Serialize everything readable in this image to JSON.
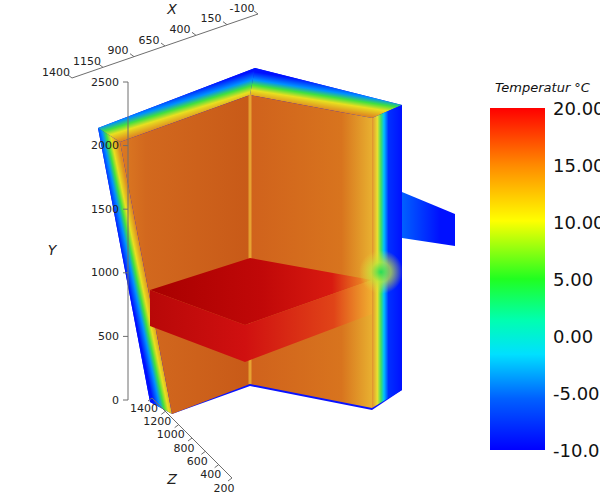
{
  "chart_data": {
    "type": "3d",
    "xlabel": "X",
    "ylabel": "Y",
    "zlabel": "Z",
    "xlim": [
      -100,
      1400
    ],
    "xticks": [
      1400,
      1150,
      900,
      650,
      400,
      150,
      -100
    ],
    "ylim": [
      0,
      2500
    ],
    "yticks": [
      0,
      500,
      1000,
      1500,
      2000,
      2500
    ],
    "zlim": [
      200,
      1400
    ],
    "zticks": [
      1400,
      1200,
      1000,
      800,
      600,
      400,
      200
    ],
    "colorbar": {
      "title": "Temperatur °C",
      "range": [
        -10,
        20
      ],
      "ticks": [
        {
          "value": 20,
          "label": "20.00"
        },
        {
          "value": 15,
          "label": "15.00"
        },
        {
          "value": 10,
          "label": "10.00"
        },
        {
          "value": 5,
          "label": "5.00"
        },
        {
          "value": 0,
          "label": "0.00"
        },
        {
          "value": -5,
          "label": "-5.00"
        },
        {
          "value": -10,
          "label": "-10.00"
        }
      ]
    }
  }
}
